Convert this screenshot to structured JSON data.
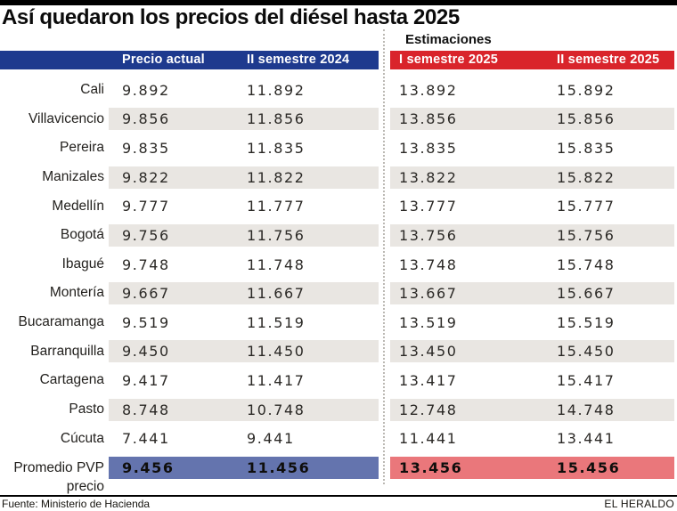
{
  "chart_data": {
    "type": "table",
    "title": "Así quedaron los precios del diésel hasta 2025",
    "group_label": "Estimaciones",
    "columns": [
      "Precio actual",
      "II semestre 2024",
      "I semestre 2025",
      "II semestre 2025"
    ],
    "rows": [
      {
        "city": "Cali",
        "values": [
          "9.892",
          "11.892",
          "13.892",
          "15.892"
        ]
      },
      {
        "city": "Villavicencio",
        "values": [
          "9.856",
          "11.856",
          "13.856",
          "15.856"
        ]
      },
      {
        "city": "Pereira",
        "values": [
          "9.835",
          "11.835",
          "13.835",
          "15.835"
        ]
      },
      {
        "city": "Manizales",
        "values": [
          "9.822",
          "11.822",
          "13.822",
          "15.822"
        ]
      },
      {
        "city": "Medellín",
        "values": [
          "9.777",
          "11.777",
          "13.777",
          "15.777"
        ]
      },
      {
        "city": "Bogotá",
        "values": [
          "9.756",
          "11.756",
          "13.756",
          "15.756"
        ]
      },
      {
        "city": "Ibagué",
        "values": [
          "9.748",
          "11.748",
          "13.748",
          "15.748"
        ]
      },
      {
        "city": "Montería",
        "values": [
          "9.667",
          "11.667",
          "13.667",
          "15.667"
        ]
      },
      {
        "city": "Bucaramanga",
        "values": [
          "9.519",
          "11.519",
          "13.519",
          "15.519"
        ]
      },
      {
        "city": "Barranquilla",
        "values": [
          "9.450",
          "11.450",
          "13.450",
          "15.450"
        ]
      },
      {
        "city": "Cartagena",
        "values": [
          "9.417",
          "11.417",
          "13.417",
          "15.417"
        ]
      },
      {
        "city": "Pasto",
        "values": [
          "8.748",
          "10.748",
          "12.748",
          "14.748"
        ]
      },
      {
        "city": "Cúcuta",
        "values": [
          "7.441",
          "9.441",
          "11.441",
          "13.441"
        ]
      },
      {
        "city": "Promedio PVP precio",
        "values": [
          "9.456",
          "11.456",
          "13.456",
          "15.456"
        ],
        "summary": true
      }
    ],
    "source": "Fuente: Ministerio de Hacienda",
    "credit": "EL HERALDO"
  },
  "colors": {
    "top_bar": "#000000",
    "header_blue": "#1e3a8e",
    "header_red": "#d9242b",
    "summary_blue": "#6474ae",
    "summary_red": "#ea777b",
    "row_stripe": "#e9e6e2"
  }
}
